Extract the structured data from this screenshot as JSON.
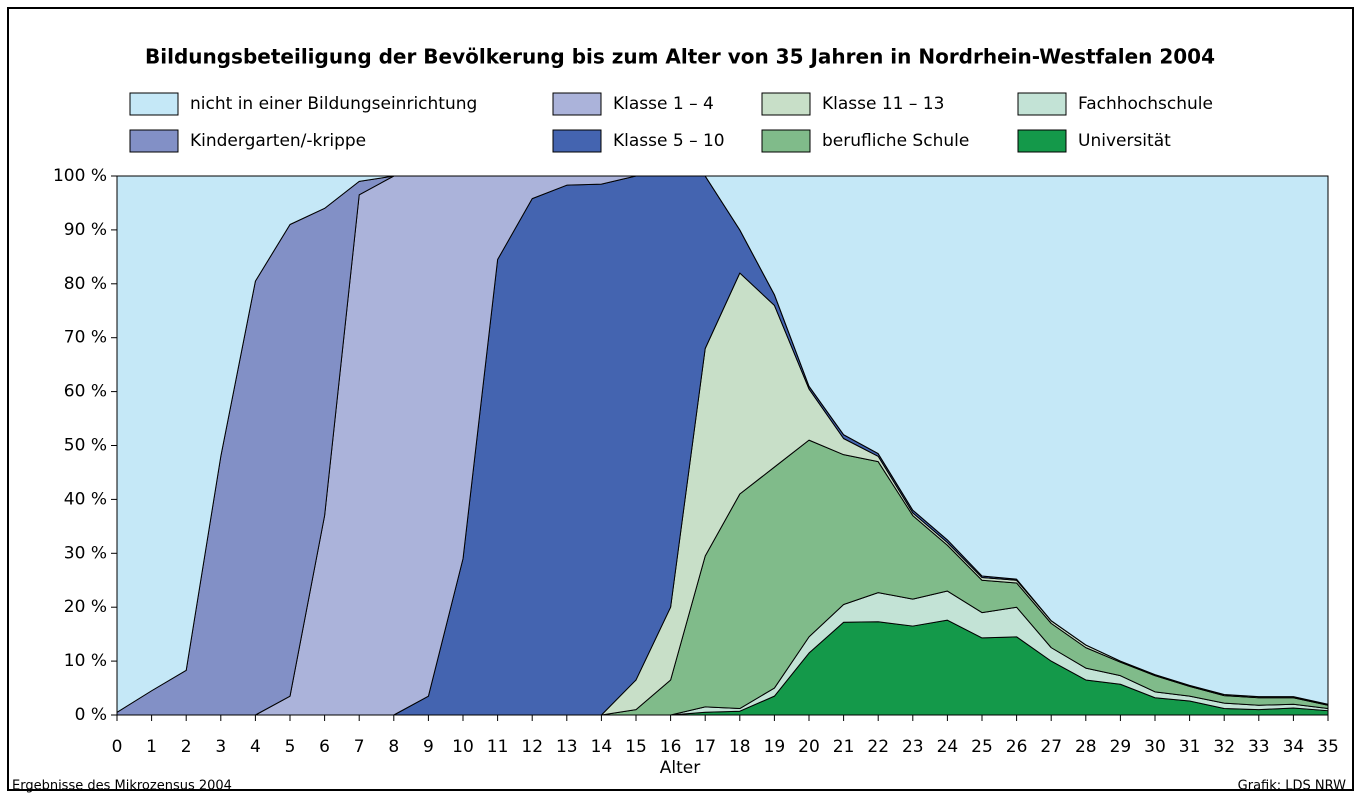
{
  "chart_data": {
    "type": "area",
    "stacked": true,
    "title": "Bildungsbeteiligung der Bevölkerung bis zum Alter von 35 Jahren in Nordrhein-Westfalen 2004",
    "xlabel": "Alter",
    "source": "Ergebnisse des Mikrozensus 2004",
    "credit": "Grafik: LDS NRW",
    "x": [
      0,
      1,
      2,
      3,
      4,
      5,
      6,
      7,
      8,
      9,
      10,
      11,
      12,
      13,
      14,
      15,
      16,
      17,
      18,
      19,
      20,
      21,
      22,
      23,
      24,
      25,
      26,
      27,
      28,
      29,
      30,
      31,
      32,
      33,
      34,
      35
    ],
    "xlim": [
      0,
      35
    ],
    "ylim": [
      0,
      100
    ],
    "yticks": [
      {
        "value": 0,
        "label": "0 %"
      },
      {
        "value": 10,
        "label": "10 %"
      },
      {
        "value": 20,
        "label": "20 %"
      },
      {
        "value": 30,
        "label": "30 %"
      },
      {
        "value": 40,
        "label": "40 %"
      },
      {
        "value": 50,
        "label": "50 %"
      },
      {
        "value": 60,
        "label": "60 %"
      },
      {
        "value": 70,
        "label": "70 %"
      },
      {
        "value": 80,
        "label": "80 %"
      },
      {
        "value": 90,
        "label": "90 %"
      },
      {
        "value": 100,
        "label": "100 %"
      }
    ],
    "series": [
      {
        "name": "nicht in einer Bildungseinrichtung",
        "color": "#c5e8f7",
        "values": [
          99.5,
          95.5,
          91.7,
          52,
          19.5,
          9,
          6,
          1,
          0,
          0,
          0,
          0,
          0,
          0,
          0,
          0,
          0,
          0,
          10,
          22,
          39,
          48,
          51.5,
          62,
          67.5,
          74.2,
          74.8,
          82.5,
          87,
          90,
          92.5,
          94.5,
          96.2,
          96.6,
          96.6,
          98
        ]
      },
      {
        "name": "Kindergarten/-krippe",
        "color": "#8290c6",
        "values": [
          0.5,
          4.5,
          8.3,
          48,
          80.5,
          87.5,
          57,
          2.5,
          0,
          0,
          0,
          0,
          0,
          0,
          0,
          0,
          0,
          0,
          0,
          0,
          0,
          0,
          0,
          0,
          0,
          0,
          0,
          0,
          0,
          0,
          0,
          0,
          0,
          0,
          0,
          0
        ]
      },
      {
        "name": "Klasse 1 – 4",
        "color": "#abb3da",
        "values": [
          0,
          0,
          0,
          0,
          0,
          3.5,
          37,
          96.5,
          100,
          96.5,
          71,
          15.5,
          4.2,
          1.7,
          1.5,
          0,
          0,
          0,
          0,
          0,
          0,
          0,
          0,
          0,
          0,
          0,
          0,
          0,
          0,
          0,
          0,
          0,
          0,
          0,
          0,
          0
        ]
      },
      {
        "name": "Klasse 5 – 10",
        "color": "#4464b0",
        "values": [
          0,
          0,
          0,
          0,
          0,
          0,
          0,
          0,
          0,
          3.5,
          29,
          84.5,
          95.8,
          98.3,
          98.5,
          93.5,
          80,
          32,
          8,
          2,
          0.5,
          0.7,
          0.5,
          0.5,
          0.5,
          0.3,
          0.2,
          0,
          0,
          0,
          0,
          0,
          0,
          0,
          0,
          0
        ]
      },
      {
        "name": "Klasse 11 – 13",
        "color": "#c8dfc8",
        "values": [
          0,
          0,
          0,
          0,
          0,
          0,
          0,
          0,
          0,
          0,
          0,
          0,
          0,
          0,
          0,
          5.5,
          13.5,
          38.5,
          41,
          30,
          9.5,
          3,
          1,
          0.5,
          0.5,
          0.5,
          0.5,
          0.5,
          0.5,
          0.2,
          0.2,
          0.2,
          0.2,
          0.2,
          0.2,
          0.2
        ]
      },
      {
        "name": "berufliche Schule",
        "color": "#80bb8a",
        "values": [
          0,
          0,
          0,
          0,
          0,
          0,
          0,
          0,
          0,
          0,
          0,
          0,
          0,
          0,
          0,
          1,
          6.5,
          28,
          39.8,
          41,
          36.5,
          27.8,
          24.3,
          15.5,
          8.5,
          6,
          4.5,
          4.5,
          3.8,
          2.5,
          3,
          1.8,
          1.4,
          1.4,
          1.2,
          0.6
        ]
      },
      {
        "name": "Fachhochschule",
        "color": "#c3e3d6",
        "values": [
          0,
          0,
          0,
          0,
          0,
          0,
          0,
          0,
          0,
          0,
          0,
          0,
          0,
          0,
          0,
          0,
          0,
          1,
          0.5,
          1.5,
          3,
          3.3,
          5.4,
          5,
          5.4,
          4.7,
          5.5,
          2.5,
          2.2,
          1.6,
          1.1,
          0.9,
          1,
          0.8,
          0.7,
          0.4
        ]
      },
      {
        "name": "Universität",
        "color": "#14994a",
        "values": [
          0,
          0,
          0,
          0,
          0,
          0,
          0,
          0,
          0,
          0,
          0,
          0,
          0,
          0,
          0,
          0,
          0,
          0.5,
          0.7,
          3.5,
          11.5,
          17.2,
          17.3,
          16.5,
          17.6,
          14.3,
          14.5,
          10,
          6.5,
          5.7,
          3.2,
          2.6,
          1.2,
          1,
          1.3,
          0.8
        ]
      }
    ]
  }
}
